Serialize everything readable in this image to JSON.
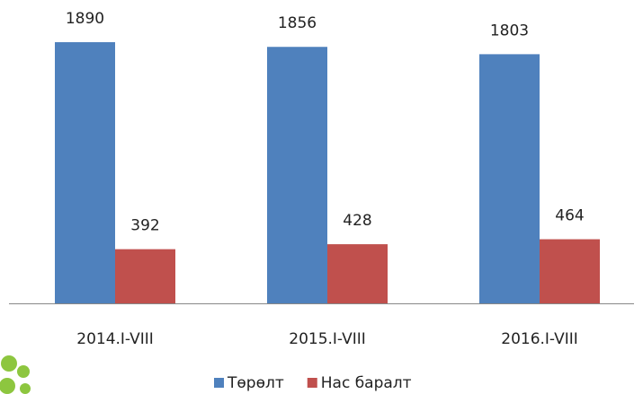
{
  "chart_data": {
    "type": "bar",
    "categories": [
      "2014.I-VIII",
      "2015.I-VIII",
      "2016.I-VIII"
    ],
    "series": [
      {
        "name": "Төрөлт",
        "color": "#4f81bd",
        "values": [
          1890,
          1856,
          1803
        ]
      },
      {
        "name": "Нас баралт",
        "color": "#c0504d",
        "values": [
          392,
          428,
          464
        ]
      }
    ]
  }
}
